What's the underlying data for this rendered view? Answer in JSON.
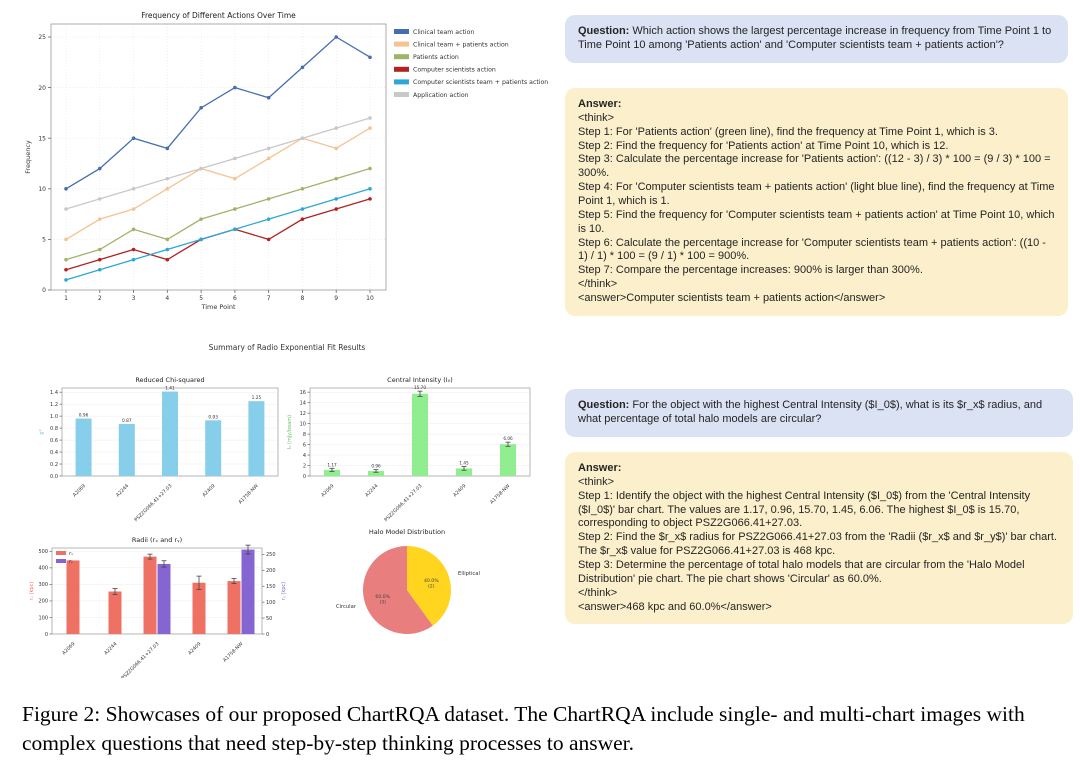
{
  "figure": {
    "caption": "Figure 2: Showcases of our proposed ChartRQA dataset. The ChartRQA include single- and multi-chart images with complex questions that need step-by-step thinking processes to answer."
  },
  "palette": {
    "question_bg": "#dbe2f3",
    "answer_bg": "#fbf0cb",
    "text": "#242424"
  },
  "qa1": {
    "question_label": "Question:",
    "question": "Which action shows the largest percentage increase in frequency from Time Point 1 to Time Point 10 among 'Patients action' and 'Computer scientists team + patients action'?",
    "answer_label": "Answer:",
    "answer_body": "<think>\nStep 1: For 'Patients action' (green line), find the frequency at Time Point 1, which is 3.\nStep 2: Find the frequency for 'Patients action' at Time Point 10, which is 12.\nStep 3: Calculate the percentage increase for 'Patients action': ((12 - 3) / 3) * 100 = (9 / 3) * 100 = 300%.\nStep 4: For 'Computer scientists team + patients action' (light blue line), find the frequency at Time Point 1, which is 1.\nStep 5: Find the frequency for 'Computer scientists team + patients action' at Time Point 10, which is 10.\nStep 6: Calculate the percentage increase for 'Computer scientists team + patients action': ((10 - 1) / 1) * 100 = (9 / 1) * 100 = 900%.\nStep 7: Compare the percentage increases: 900% is larger than 300%.\n</think>\n<answer>Computer scientists team + patients action</answer>"
  },
  "qa2": {
    "question_label": "Question:",
    "question": "For the object with the highest Central Intensity ($I_0$), what is its $r_x$ radius, and what percentage of total halo models are circular?",
    "answer_label": "Answer:",
    "answer_body": "<think>\nStep 1: Identify the object with the highest Central Intensity ($I_0$) from the 'Central Intensity ($I_0$)' bar chart. The values are 1.17, 0.96, 15.70, 1.45, 6.06. The highest $I_0$ is 15.70, corresponding to object PSZ2G066.41+27.03.\nStep 2: Find the $r_x$ radius for PSZ2G066.41+27.03 from the 'Radii ($r_x$ and $r_y$)' bar chart. The $r_x$ value for PSZ2G066.41+27.03 is 468 kpc.\nStep 3: Determine the percentage of total halo models that are circular from the 'Halo Model Distribution' pie chart. The pie chart shows 'Circular' as 60.0%.\n</think>\n<answer>468 kpc and 60.0%</answer>"
  },
  "radio_fit_figure": {
    "suptitle": "Summary of Radio Exponential Fit Results"
  },
  "chart_data": [
    {
      "id": "actions_over_time",
      "type": "line",
      "title": "Frequency of Different Actions Over Time",
      "xlabel": "Time Point",
      "ylabel": "Frequency",
      "x": [
        1,
        2,
        3,
        4,
        5,
        6,
        7,
        8,
        9,
        10
      ],
      "ylim": [
        0,
        25
      ],
      "yticks": [
        0,
        5,
        10,
        15,
        20,
        25
      ],
      "grid": true,
      "legend_position": "right-outside",
      "series": [
        {
          "name": "Clinical team action",
          "color": "#456eb0",
          "values": [
            10,
            12,
            15,
            14,
            18,
            20,
            19,
            22,
            25,
            23
          ]
        },
        {
          "name": "Clinical team + patients action",
          "color": "#f4c38f",
          "values": [
            5,
            7,
            8,
            10,
            12,
            11,
            13,
            15,
            14,
            16
          ]
        },
        {
          "name": "Patients action",
          "color": "#a0b469",
          "values": [
            3,
            4,
            6,
            5,
            7,
            8,
            9,
            10,
            11,
            12
          ]
        },
        {
          "name": "Computer scientists action",
          "color": "#b22222",
          "values": [
            2,
            3,
            4,
            3,
            5,
            6,
            5,
            7,
            8,
            9
          ]
        },
        {
          "name": "Computer scientists team + patients action",
          "color": "#2da7d8",
          "values": [
            1,
            2,
            3,
            4,
            5,
            6,
            7,
            8,
            9,
            10
          ]
        },
        {
          "name": "Application action",
          "color": "#c8c8c8",
          "values": [
            8,
            9,
            10,
            11,
            12,
            13,
            14,
            15,
            16,
            17
          ]
        }
      ]
    },
    {
      "id": "reduced_chi_squared",
      "type": "bar",
      "title": "Reduced Chi-squared",
      "ylabel": "χ²",
      "ylabel_color": "#7fbfdf",
      "categories": [
        "A2069",
        "A2244",
        "PSZ2G066.41+27.03",
        "A2409",
        "A1758-NW"
      ],
      "values": [
        0.96,
        0.87,
        1.41,
        0.93,
        1.25
      ],
      "bar_color": "#87ceeb",
      "ylim": [
        0,
        1.4
      ],
      "yticks": [
        0.0,
        0.2,
        0.4,
        0.6,
        0.8,
        1.0,
        1.2,
        1.4
      ]
    },
    {
      "id": "central_intensity",
      "type": "bar",
      "title": "Central Intensity (I₀)",
      "ylabel": "I₀ (mJy/beam)",
      "ylabel_color": "#6abf69",
      "categories": [
        "A2069",
        "A2244",
        "PSZ2G066.41+27.03",
        "A2409",
        "A1758-NW"
      ],
      "values": [
        1.17,
        0.96,
        15.7,
        1.45,
        6.06
      ],
      "errors": [
        0.3,
        0.25,
        0.5,
        0.35,
        0.4
      ],
      "bar_color": "#90ee90",
      "ylim": [
        0,
        16
      ],
      "yticks": [
        0,
        2,
        4,
        6,
        8,
        10,
        12,
        14,
        16
      ]
    },
    {
      "id": "radii",
      "type": "bar",
      "title": "Radii (rₓ and rᵧ)",
      "ylabel_left": "rₓ (kpc)",
      "ylabel_left_color": "#ee7164",
      "ylabel_right": "rᵧ (kpc)",
      "ylabel_right_color": "#8465d1",
      "categories": [
        "A2069",
        "A2244",
        "PSZ2G066.41+27.03",
        "A2409",
        "A1758-NW"
      ],
      "series": [
        {
          "name": "rₓ",
          "axis": "left",
          "color": "#ee7164",
          "values": [
            445,
            257,
            468,
            310,
            320
          ],
          "errors": [
            null,
            18,
            15,
            40,
            15
          ]
        },
        {
          "name": "rᵧ",
          "axis": "right",
          "color": "#8465d1",
          "values": [
            null,
            null,
            220,
            null,
            265
          ],
          "errors": [
            null,
            null,
            10,
            null,
            14
          ]
        }
      ],
      "ylim_left": [
        0,
        520
      ],
      "yticks_left": [
        0,
        100,
        200,
        300,
        400,
        500
      ],
      "ylim_right": [
        0,
        270
      ],
      "yticks_right": [
        0,
        50,
        100,
        150,
        200,
        250
      ]
    },
    {
      "id": "halo_model_distribution",
      "type": "pie",
      "title": "Halo Model Distribution",
      "slices": [
        {
          "label": "Circular",
          "pct": 60.0,
          "count": 3,
          "color": "#e97e7e"
        },
        {
          "label": "Elliptical",
          "pct": 40.0,
          "count": 2,
          "color": "#ffd520"
        }
      ],
      "start_angle": 90
    }
  ]
}
